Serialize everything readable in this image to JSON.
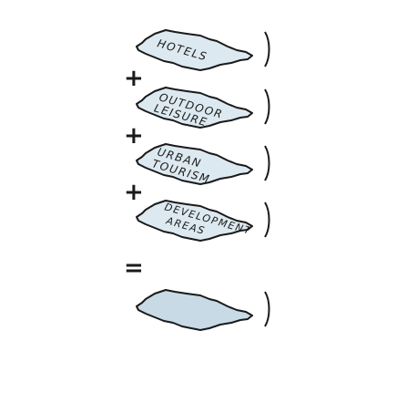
{
  "colors": {
    "slab_fill": "#dde9f0",
    "result_fill": "#c8dae6",
    "outline": "#1a1a1a",
    "background": "#ffffff"
  },
  "layers": [
    {
      "lines": [
        "HOTELS"
      ]
    },
    {
      "lines": [
        "OUTDOOR",
        "LEISURE"
      ]
    },
    {
      "lines": [
        "URBAN",
        "TOURISM"
      ]
    },
    {
      "lines": [
        "DEVELOPMENT",
        "AREAS"
      ]
    }
  ],
  "operators": {
    "plus": "+",
    "equals": "="
  }
}
